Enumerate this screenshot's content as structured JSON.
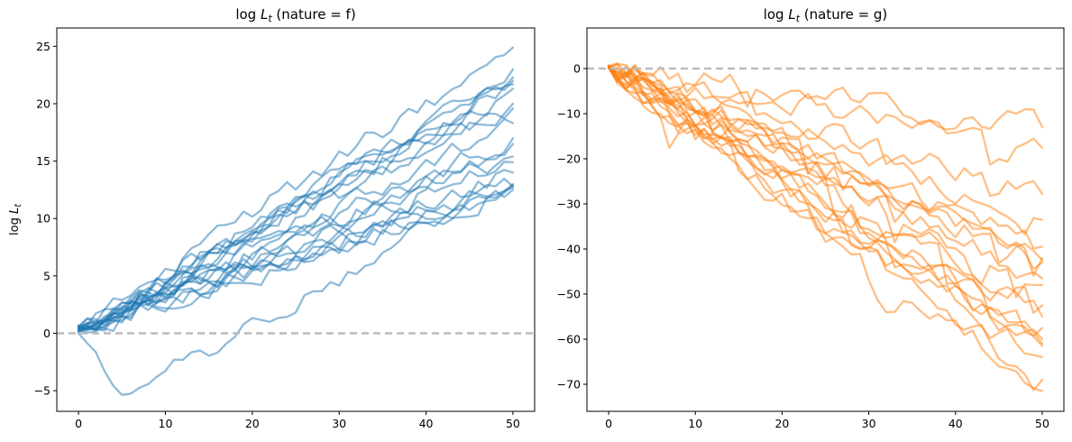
{
  "colors": {
    "f": "#1f77b4",
    "g": "#ff7f0e",
    "reference": "#bbbbbb"
  },
  "chart_data": [
    {
      "type": "line",
      "title_prefix": "log",
      "title_var": "L",
      "title_sub": "t",
      "title_suffix": " (nature = f)",
      "ylabel_prefix": "log",
      "ylabel_var": "L",
      "ylabel_sub": "t",
      "xlim": [
        -2.5,
        52.5
      ],
      "ylim": [
        -6.8,
        26.6
      ],
      "xticks": [
        0,
        10,
        20,
        30,
        40,
        50
      ],
      "yticks": [
        -5,
        0,
        5,
        10,
        15,
        20,
        25
      ],
      "reference_line": 0,
      "grid": false,
      "color_key": "f",
      "n_steps": 50,
      "series": [
        {
          "start": 0.5,
          "end": 24.9
        },
        {
          "start": 0.3,
          "end": 23.0
        },
        {
          "start": 0.6,
          "end": 22.3
        },
        {
          "start": 0.2,
          "end": 21.3
        },
        {
          "start": 0.4,
          "end": 20.0
        },
        {
          "start": 0.7,
          "end": 19.6
        },
        {
          "start": 0.1,
          "end": 18.3
        },
        {
          "start": 0.5,
          "end": 16.5
        },
        {
          "start": 0.3,
          "end": 15.4
        },
        {
          "start": 0.6,
          "end": 14.9
        },
        {
          "start": 0.2,
          "end": 14.0
        },
        {
          "start": 0.4,
          "end": 13.0
        },
        {
          "start": 0.5,
          "end": 12.7
        },
        {
          "start": 0.3,
          "end": 12.5
        },
        {
          "start": 0.6,
          "end": 22.0
        },
        {
          "start": 0.2,
          "end": 17.0
        },
        {
          "start": 0.4,
          "end": 12.8
        },
        {
          "start": 0.5,
          "end": 21.7
        },
        {
          "start": 0.0,
          "end": 12.9,
          "dip": -5.4,
          "dip_at": 5
        }
      ]
    },
    {
      "type": "line",
      "title_prefix": "log",
      "title_var": "L",
      "title_sub": "t",
      "title_suffix": " (nature = g)",
      "xlim": [
        -2.5,
        52.5
      ],
      "ylim": [
        -76.0,
        9.0
      ],
      "xticks": [
        0,
        10,
        20,
        30,
        40,
        50
      ],
      "yticks": [
        -70,
        -60,
        -50,
        -40,
        -30,
        -20,
        -10,
        0
      ],
      "reference_line": 0,
      "grid": false,
      "color_key": "g",
      "n_steps": 50,
      "series": [
        {
          "start": 0.5,
          "end": -13.0
        },
        {
          "start": 0.3,
          "end": -17.6
        },
        {
          "start": 0.6,
          "end": -27.8
        },
        {
          "start": 0.2,
          "end": -33.5
        },
        {
          "start": 0.4,
          "end": -39.5
        },
        {
          "start": 0.7,
          "end": -42.0
        },
        {
          "start": 0.1,
          "end": -42.5
        },
        {
          "start": 0.5,
          "end": -43.0
        },
        {
          "start": 0.3,
          "end": -46.5
        },
        {
          "start": 0.6,
          "end": -52.5
        },
        {
          "start": 0.2,
          "end": -57.5
        },
        {
          "start": 0.4,
          "end": -60.0
        },
        {
          "start": 0.5,
          "end": -61.0
        },
        {
          "start": 0.3,
          "end": -61.5
        },
        {
          "start": 0.6,
          "end": -69.0
        },
        {
          "start": 0.2,
          "end": -71.5
        },
        {
          "start": 0.4,
          "end": -64.0
        },
        {
          "start": 0.5,
          "end": -55.0
        },
        {
          "start": 0.3,
          "end": -48.0
        }
      ]
    }
  ]
}
